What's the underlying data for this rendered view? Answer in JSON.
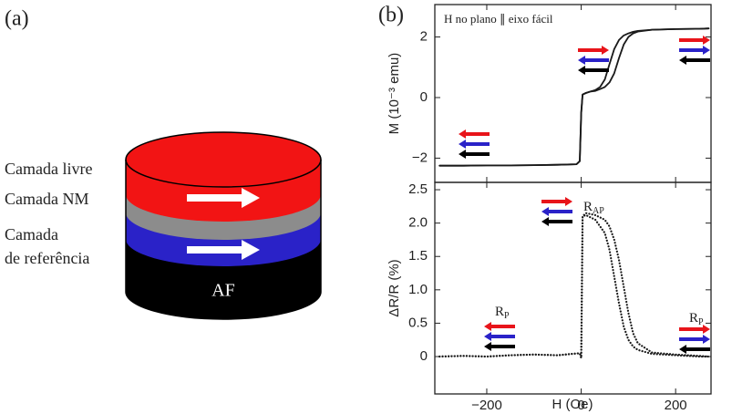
{
  "diagram": {
    "panel_label": "(a)",
    "layers": [
      "Camada livre",
      "Camada NM",
      "Camada",
      "de referência"
    ],
    "base_label": "AF"
  },
  "chart_data": [
    {
      "type": "line",
      "panel_label": "(b)",
      "ylabel": "M (10⁻³ emu)",
      "style": "solid",
      "color": "#1a1a1a",
      "annotations": [
        {
          "text": "H no plano ∥ eixo fácil"
        }
      ],
      "x": [
        -300,
        -250,
        -200,
        -150,
        -100,
        -50,
        -10,
        -3,
        0,
        3,
        10,
        20,
        30,
        40,
        50,
        60,
        70,
        80,
        90,
        100,
        110,
        120,
        150,
        200,
        250,
        270
      ],
      "series": [
        {
          "values": [
            -2.25,
            -2.25,
            -2.24,
            -2.24,
            -2.23,
            -2.22,
            -2.2,
            -2.1,
            -0.5,
            0.1,
            0.15,
            0.2,
            0.25,
            0.35,
            0.6,
            1.1,
            1.6,
            1.9,
            2.05,
            2.12,
            2.17,
            2.2,
            2.24,
            2.26,
            2.27,
            2.28
          ]
        },
        {
          "values": [
            -2.25,
            -2.25,
            -2.24,
            -2.24,
            -2.23,
            -2.22,
            -2.2,
            -2.1,
            -0.5,
            0.1,
            0.15,
            0.2,
            0.22,
            0.28,
            0.35,
            0.5,
            0.8,
            1.3,
            1.75,
            2.0,
            2.12,
            2.18,
            2.24,
            2.26,
            2.27,
            2.28
          ]
        }
      ],
      "ylim": [
        -2.8,
        3.07
      ],
      "yticks": [
        {
          "value": -2,
          "label": "−2"
        },
        0,
        2
      ]
    },
    {
      "type": "line",
      "ylabel": "ΔR/R (%)",
      "xlabel": "H (Oe)",
      "style": "dotted",
      "color": "#1a1a1a",
      "annotations": [
        {
          "text": "R",
          "sub": "AP"
        },
        {
          "text": "R",
          "sub": "P"
        },
        {
          "text": "R",
          "sub": "P"
        }
      ],
      "x": [
        -300,
        -250,
        -200,
        -150,
        -100,
        -50,
        -20,
        -3,
        0,
        3,
        10,
        30,
        50,
        60,
        70,
        80,
        90,
        100,
        110,
        120,
        150,
        200,
        250,
        270
      ],
      "series": [
        {
          "values": [
            0.0,
            0.01,
            0.0,
            0.02,
            0.03,
            0.02,
            0.04,
            0.05,
            -0.02,
            2.1,
            2.12,
            2.05,
            1.85,
            1.6,
            1.2,
            0.8,
            0.45,
            0.25,
            0.15,
            0.1,
            0.04,
            0.02,
            0.0,
            0.0
          ]
        },
        {
          "values": [
            0.0,
            0.01,
            0.0,
            0.02,
            0.03,
            0.02,
            0.04,
            0.05,
            -0.02,
            2.1,
            2.15,
            2.12,
            2.05,
            1.95,
            1.75,
            1.45,
            1.05,
            0.65,
            0.35,
            0.2,
            0.06,
            0.03,
            0.01,
            0.0
          ]
        }
      ],
      "xlim": [
        -310,
        275
      ],
      "xticks": [
        {
          "value": -200,
          "label": "−200"
        },
        0,
        200
      ],
      "ylim": [
        -0.56,
        2.61
      ],
      "yticks": [
        0,
        0.5,
        {
          "value": 1,
          "label": "1.0"
        },
        {
          "value": 1.5,
          "label": "1.5"
        },
        {
          "value": 2,
          "label": "2.0"
        },
        2.5
      ]
    }
  ]
}
